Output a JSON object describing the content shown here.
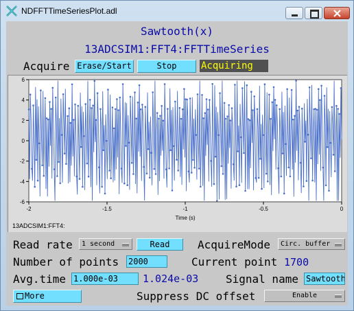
{
  "window": {
    "title": "NDFFTTimeSeriesPlot.adl"
  },
  "header": {
    "function_name": "Sawtooth(x)",
    "pv_prefix": "13ADCSIM1:FFT4:FFTTimeSeries"
  },
  "acquire": {
    "label": "Acquire",
    "erase_start_label": "Erase/Start",
    "stop_label": "Stop",
    "status": "Acquiring"
  },
  "plot": {
    "footer": "13ADCSIM1:FFT4:"
  },
  "chart_data": {
    "type": "line",
    "xlabel": "Time (s)",
    "ylabel": "",
    "xlim": [
      -2,
      0
    ],
    "ylim": [
      -6,
      6
    ],
    "x_ticks": [
      "-2",
      "-1.5",
      "-1",
      "-0.5",
      "0"
    ],
    "y_ticks": [
      "-6",
      "-4",
      "-2",
      "0",
      "2",
      "4",
      "6"
    ],
    "series": [
      {
        "color": "#4a6fc8",
        "point_count": 1700,
        "values_sample": [
          3.2,
          -4.1,
          5.0,
          1.8,
          -2.7,
          -5.3,
          4.4,
          0.6,
          -3.9,
          5.6,
          -1.2,
          2.9,
          -4.8,
          3.7,
          -0.4,
          -5.1,
          4.9,
          1.1,
          -2.2,
          5.4,
          -3.6,
          0.2,
          4.1,
          -4.6,
          2.5,
          -5.7,
          3.3,
          -1.9,
          5.2,
          -0.8
        ]
      }
    ]
  },
  "controls": {
    "read_rate_label": "Read rate",
    "read_rate_value": "1 second",
    "read_button_label": "Read",
    "acquire_mode_label": "AcquireMode",
    "acquire_mode_value": "Circ. buffer",
    "num_points_label": "Number of points",
    "num_points_value": "2000",
    "current_point_label": "Current point",
    "current_point_value": "1700",
    "avg_time_label": "Avg.time",
    "avg_time_value": "1.000e-03",
    "avg_time_readback": "1.024e-03",
    "signal_name_label": "Signal name",
    "signal_name_value": "Sawtooth",
    "more_label": "More",
    "suppress_dc_label": "Suppress DC offset",
    "suppress_dc_value": "Enable"
  }
}
